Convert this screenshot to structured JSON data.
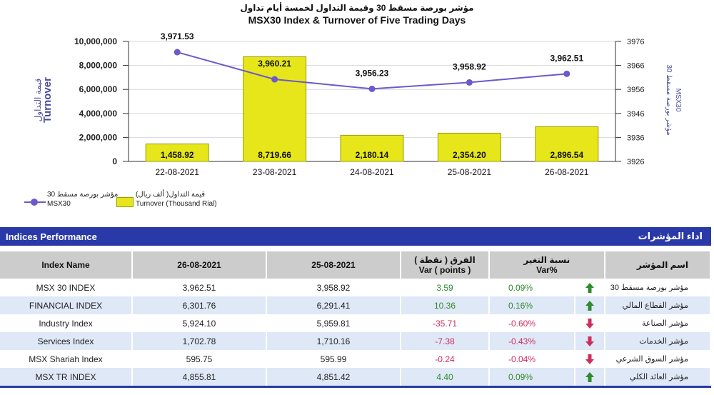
{
  "chart_data": {
    "type": "bar+line",
    "title_ar": "مؤشر بورصة مسقط 30 وقيمة التداول لخمسة أيام تداول",
    "title": "MSX30 Index & Turnover of Five Trading Days",
    "categories": [
      "22-08-2021",
      "23-08-2021",
      "24-08-2021",
      "25-08-2021",
      "26-08-2021"
    ],
    "series": [
      {
        "name": "Turnover (Thousand Rial)",
        "name_ar": "قيمة التداول( ألف ريال)",
        "type": "bar",
        "axis": "left",
        "values": [
          1458.92,
          8719.66,
          2180.14,
          2354.2,
          2896.54
        ],
        "labels": [
          "1,458.92",
          "8,719.66",
          "2,180.14",
          "2,354.20",
          "2,896.54"
        ]
      },
      {
        "name": "MSX30",
        "name_ar": "مؤشر بورصة مسقط 30",
        "type": "line",
        "axis": "right",
        "values": [
          3971.53,
          3960.21,
          3956.23,
          3958.92,
          3962.51
        ],
        "labels": [
          "3,971.53",
          "3,960.21",
          "3,956.23",
          "3,958.92",
          "3,962.51"
        ]
      }
    ],
    "ylabel": "Turnover",
    "ylabel_ar": "قيمة التداول",
    "ylim": [
      0,
      10000000
    ],
    "yticks": [
      "0",
      "2,000,000",
      "4,000,000",
      "6,000,000",
      "8,000,000",
      "10,000,000"
    ],
    "y2label": "MSX30",
    "y2label_ar": "مؤشر بورصة مسقط 30",
    "y2lim": [
      3926,
      3976
    ],
    "y2ticks": [
      "3926",
      "3936",
      "3946",
      "3956",
      "3966",
      "3976"
    ],
    "bar_scale_note": "bar values plotted against left axis",
    "grid": true,
    "legend_position": "bottom-left"
  },
  "colors": {
    "bar": "#e6e61a",
    "line": "#6a5acd",
    "header": "#2a39a8",
    "positive": "#2e8b2e",
    "negative": "#cc2f5f"
  },
  "performance": {
    "title": "Indices Performance",
    "title_ar": "اداء المؤشرات",
    "columns": {
      "name": "Index Name",
      "d1": "26-08-2021",
      "d2": "25-08-2021",
      "var_ar": "الفرق ( نقطة )",
      "var": "Var ( points )",
      "pct_ar": "نسبة التغير",
      "pct": "Var%",
      "name_ar": "اسم المؤشر"
    },
    "rows": [
      {
        "name": "MSX 30 INDEX",
        "d1": "3,962.51",
        "d2": "3,958.92",
        "var": "3.59",
        "pct": "0.09%",
        "dir": "up",
        "name_ar": "مؤشر بورصة مسقط 30"
      },
      {
        "name": "FINANCIAL INDEX",
        "d1": "6,301.76",
        "d2": "6,291.41",
        "var": "10.36",
        "pct": "0.16%",
        "dir": "up",
        "name_ar": "مؤشر القطاع المالي"
      },
      {
        "name": "Industry Index",
        "d1": "5,924.10",
        "d2": "5,959.81",
        "var": "-35.71",
        "pct": "-0.60%",
        "dir": "down",
        "name_ar": "مؤشر الصناعة"
      },
      {
        "name": "Services Index",
        "d1": "1,702.78",
        "d2": "1,710.16",
        "var": "-7.38",
        "pct": "-0.43%",
        "dir": "down",
        "name_ar": "مؤشر الخدمات"
      },
      {
        "name": "MSX Shariah Index",
        "d1": "595.75",
        "d2": "595.99",
        "var": "-0.24",
        "pct": "-0.04%",
        "dir": "down",
        "name_ar": "مؤشر السوق الشرعي"
      },
      {
        "name": "MSX TR INDEX",
        "d1": "4,855.81",
        "d2": "4,851.42",
        "var": "4.40",
        "pct": "0.09%",
        "dir": "up",
        "name_ar": "مؤشر العائد الكلي"
      }
    ]
  }
}
